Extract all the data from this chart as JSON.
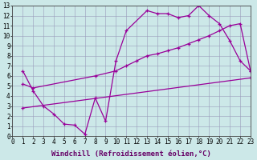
{
  "line1_x": [
    1,
    2,
    3,
    4,
    5,
    6,
    7,
    8,
    9,
    10,
    11,
    13,
    14,
    15,
    16,
    17,
    18,
    19,
    20,
    21,
    22,
    23
  ],
  "line1_y": [
    6.5,
    4.5,
    3.0,
    2.2,
    1.2,
    1.1,
    0.2,
    3.8,
    1.5,
    7.5,
    10.5,
    12.5,
    12.2,
    12.2,
    11.8,
    12.0,
    13.0,
    12.0,
    11.2,
    9.5,
    7.5,
    6.5
  ],
  "line2_x": [
    1,
    2,
    8,
    10,
    11,
    12,
    13,
    14,
    15,
    16,
    17,
    18,
    19,
    20,
    21,
    22,
    23
  ],
  "line2_y": [
    5.2,
    4.8,
    6.0,
    6.5,
    7.0,
    7.5,
    8.0,
    8.2,
    8.5,
    8.8,
    9.2,
    9.6,
    10.0,
    10.5,
    11.0,
    11.2,
    6.5
  ],
  "line3_x": [
    1,
    23
  ],
  "line3_y": [
    2.8,
    5.8
  ],
  "line_color": "#990099",
  "bg_color": "#cce8e8",
  "grid_color": "#9999bb",
  "xlabel": "Windchill (Refroidissement éolien,°C)",
  "xlim": [
    0,
    23
  ],
  "ylim": [
    0,
    13
  ],
  "xticks": [
    0,
    1,
    2,
    3,
    4,
    5,
    6,
    7,
    8,
    9,
    10,
    11,
    12,
    13,
    14,
    15,
    16,
    17,
    18,
    19,
    20,
    21,
    22,
    23
  ],
  "yticks": [
    0,
    1,
    2,
    3,
    4,
    5,
    6,
    7,
    8,
    9,
    10,
    11,
    12,
    13
  ],
  "xlabel_fontsize": 6.5,
  "tick_fontsize": 5.5,
  "marker": "+",
  "markersize": 3.5,
  "linewidth": 0.9
}
